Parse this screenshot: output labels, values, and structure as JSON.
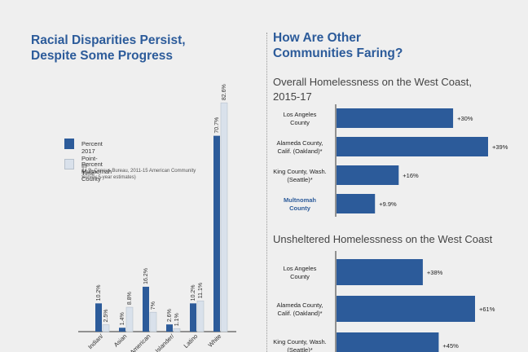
{
  "left_panel": {
    "title_line1": "Racial Disparities Persist,",
    "title_line2": "Despite Some Progress"
  },
  "legend": [
    {
      "label": "Percent 2017 Point-In-Time*",
      "note": "",
      "color": "#2c5b9a"
    },
    {
      "label": "Percent Multnomah County",
      "note": "(U.S. Census Bureau, 2011-15 American Community Survey 5-year estimates)",
      "color": "#d9e1eb"
    }
  ],
  "right_panel": {
    "title_line1": "How Are Other",
    "title_line2": "Communities Faring?",
    "subtitle1_line1": "Overall Homelessness on the West Coast,",
    "subtitle1_line2": "2015-17",
    "subtitle2": "Unsheltered Homelessness on the West Coast"
  },
  "chart_data": [
    {
      "type": "bar",
      "categories": [
        "Indian/",
        "Asian",
        "American",
        "Islander/",
        "Latino",
        "White"
      ],
      "series": [
        {
          "name": "Percent 2017 Point-In-Time*",
          "values": [
            10.2,
            1.4,
            16.2,
            2.6,
            10.2,
            70.7
          ],
          "labels": [
            "10.2%",
            "1.4%",
            "16.2%",
            "2.6%",
            "10.2%",
            "70.7%"
          ]
        },
        {
          "name": "Percent Multnomah County",
          "values": [
            2.5,
            8.8,
            7,
            1.1,
            11.1,
            82.6
          ],
          "labels": [
            "2.5%",
            "8.8%",
            "7%",
            "1.1%",
            "11.1%",
            "82.6%"
          ]
        }
      ],
      "ylim": [
        0,
        100
      ]
    },
    {
      "type": "bar",
      "orientation": "horizontal",
      "title": "Overall Homelessness on the West Coast, 2015-17",
      "categories": [
        [
          "Los Angeles",
          "County"
        ],
        [
          "Alameda County,",
          "Calif. (Oakland)*"
        ],
        [
          "King County, Wash.",
          "(Seattle)*"
        ],
        [
          "Multnomah",
          "County"
        ]
      ],
      "values": [
        30,
        39,
        16,
        9.9
      ],
      "labels": [
        "+30%",
        "+39%",
        "+16%",
        "+9.9%"
      ],
      "highlight": "Multnomah County",
      "xlim": [
        0,
        39
      ]
    },
    {
      "type": "bar",
      "orientation": "horizontal",
      "title": "Unsheltered Homelessness on the West Coast",
      "categories": [
        [
          "Los Angeles",
          "County"
        ],
        [
          "Alameda County,",
          "Calif. (Oakland)*"
        ],
        [
          "King County, Wash.",
          "(Seattle)*"
        ]
      ],
      "values": [
        38,
        61,
        45
      ],
      "labels": [
        "+38%",
        "+61%",
        "+45%"
      ],
      "xlim": [
        0,
        61
      ]
    }
  ],
  "colors": {
    "primary": "#2c5b9a",
    "secondary": "#d9e1eb",
    "highlight_text": "#2c5b9a",
    "axis": "#333333"
  }
}
